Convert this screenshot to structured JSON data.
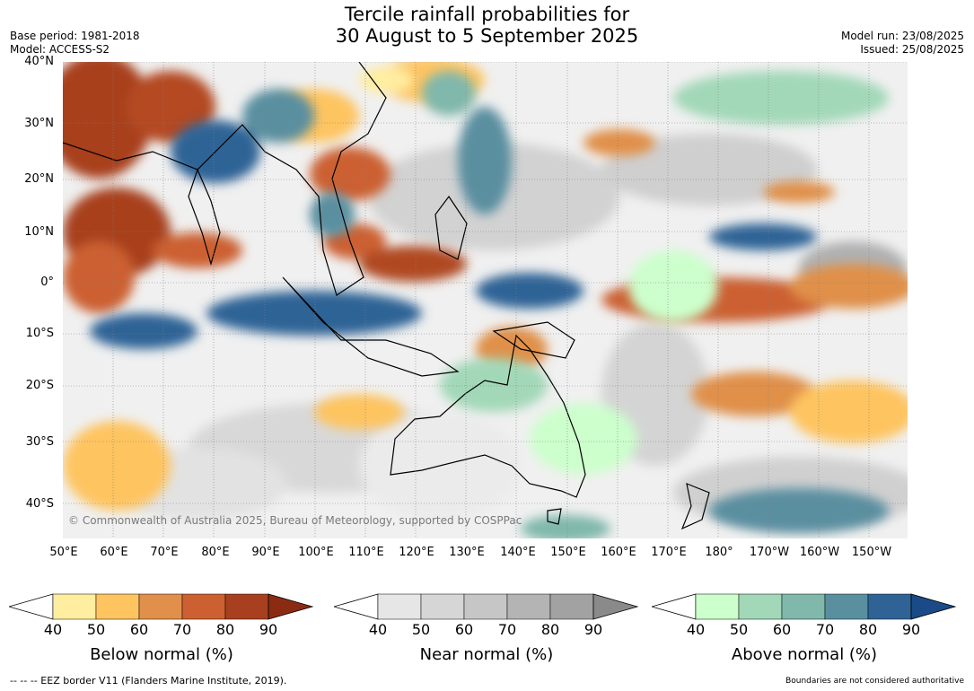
{
  "title_line1": "Tercile rainfall probabilities for",
  "title_line2": "30 August to 5 September 2025",
  "meta_left": {
    "base_period": "Base period: 1981-2018",
    "model": "Model: ACCESS-S2"
  },
  "meta_right": {
    "model_run": "Model run: 23/08/2025",
    "issued": "Issued: 25/08/2025"
  },
  "map": {
    "lat_labels": [
      "40°N",
      "30°N",
      "20°N",
      "10°N",
      "0°",
      "10°S",
      "20°S",
      "30°S",
      "40°S"
    ],
    "lon_labels": [
      "50°E",
      "60°E",
      "70°E",
      "80°E",
      "90°E",
      "100°E",
      "110°E",
      "120°E",
      "130°E",
      "140°E",
      "150°E",
      "160°E",
      "170°E",
      "180°",
      "170°W",
      "160°W",
      "150°W"
    ],
    "copyright": "© Commonwealth of Australia 2025, Bureau of Meteorology, supported by COSPPac"
  },
  "colorbars": [
    {
      "label": "Below normal (%)",
      "ticks": [
        "40",
        "50",
        "60",
        "70",
        "80",
        "90"
      ],
      "colors": [
        "#ffeda0",
        "#fec460",
        "#e0904a",
        "#cc6030",
        "#a8401f",
        "#8b2c12"
      ]
    },
    {
      "label": "Near normal (%)",
      "ticks": [
        "40",
        "50",
        "60",
        "70",
        "80",
        "90"
      ],
      "colors": [
        "#e6e6e6",
        "#d6d6d6",
        "#c6c6c6",
        "#b4b4b4",
        "#a2a2a2",
        "#8a8a8a"
      ]
    },
    {
      "label": "Above normal (%)",
      "ticks": [
        "40",
        "50",
        "60",
        "70",
        "80",
        "90"
      ],
      "colors": [
        "#ccffcc",
        "#a2d8b8",
        "#80b8ac",
        "#5a8fa0",
        "#2f6396",
        "#1a4b86"
      ]
    }
  ],
  "footer_left": "--  --  -- EEZ border V11 (Flanders Marine Institute, 2019).",
  "footer_right": "Boundaries are not considered authoritative"
}
